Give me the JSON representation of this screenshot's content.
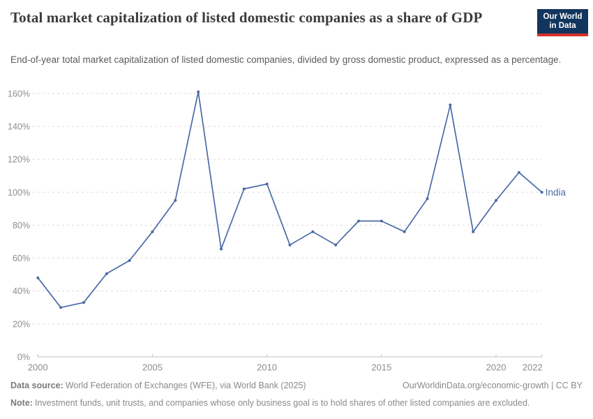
{
  "header": {
    "title": "Total market capitalization of listed domestic companies as a share of GDP",
    "logo": {
      "line1": "Our World",
      "line2": "in Data"
    }
  },
  "subtitle": "End-of-year total market capitalization of listed domestic companies, divided by gross domestic product, expressed as a percentage.",
  "chart_data": {
    "type": "line",
    "title": "Total market capitalization of listed domestic companies as a share of GDP",
    "x": [
      2000,
      2001,
      2002,
      2003,
      2004,
      2005,
      2006,
      2007,
      2008,
      2009,
      2010,
      2011,
      2012,
      2013,
      2014,
      2015,
      2016,
      2017,
      2018,
      2019,
      2020,
      2021,
      2022
    ],
    "series": [
      {
        "name": "India",
        "values": [
          48,
          30,
          33,
          50.5,
          58.5,
          76,
          95,
          161,
          65.5,
          102,
          105,
          68,
          76,
          68,
          82.5,
          82.5,
          76,
          96,
          153,
          76,
          95,
          112,
          100
        ]
      }
    ],
    "ylim": [
      0,
      160
    ],
    "yticks": [
      0,
      20,
      40,
      60,
      80,
      100,
      120,
      140,
      160
    ],
    "ytick_suffix": "%",
    "xticks": [
      2000,
      2005,
      2010,
      2015,
      2020,
      2022
    ],
    "grid": true,
    "legend_position": "line-end-label",
    "colors": {
      "line": "#4a6aa5",
      "grid": "#dcdcdc",
      "axis": "#c2c2c2",
      "tick_label": "#8d8d8d"
    }
  },
  "footer": {
    "data_source_label": "Data source:",
    "data_source": "World Federation of Exchanges (WFE), via World Bank (2025)",
    "link": "OurWorldinData.org/economic-growth | CC BY",
    "note_label": "Note:",
    "note": "Investment funds, unit trusts, and companies whose only business goal is to hold shares of other listed companies are excluded."
  }
}
